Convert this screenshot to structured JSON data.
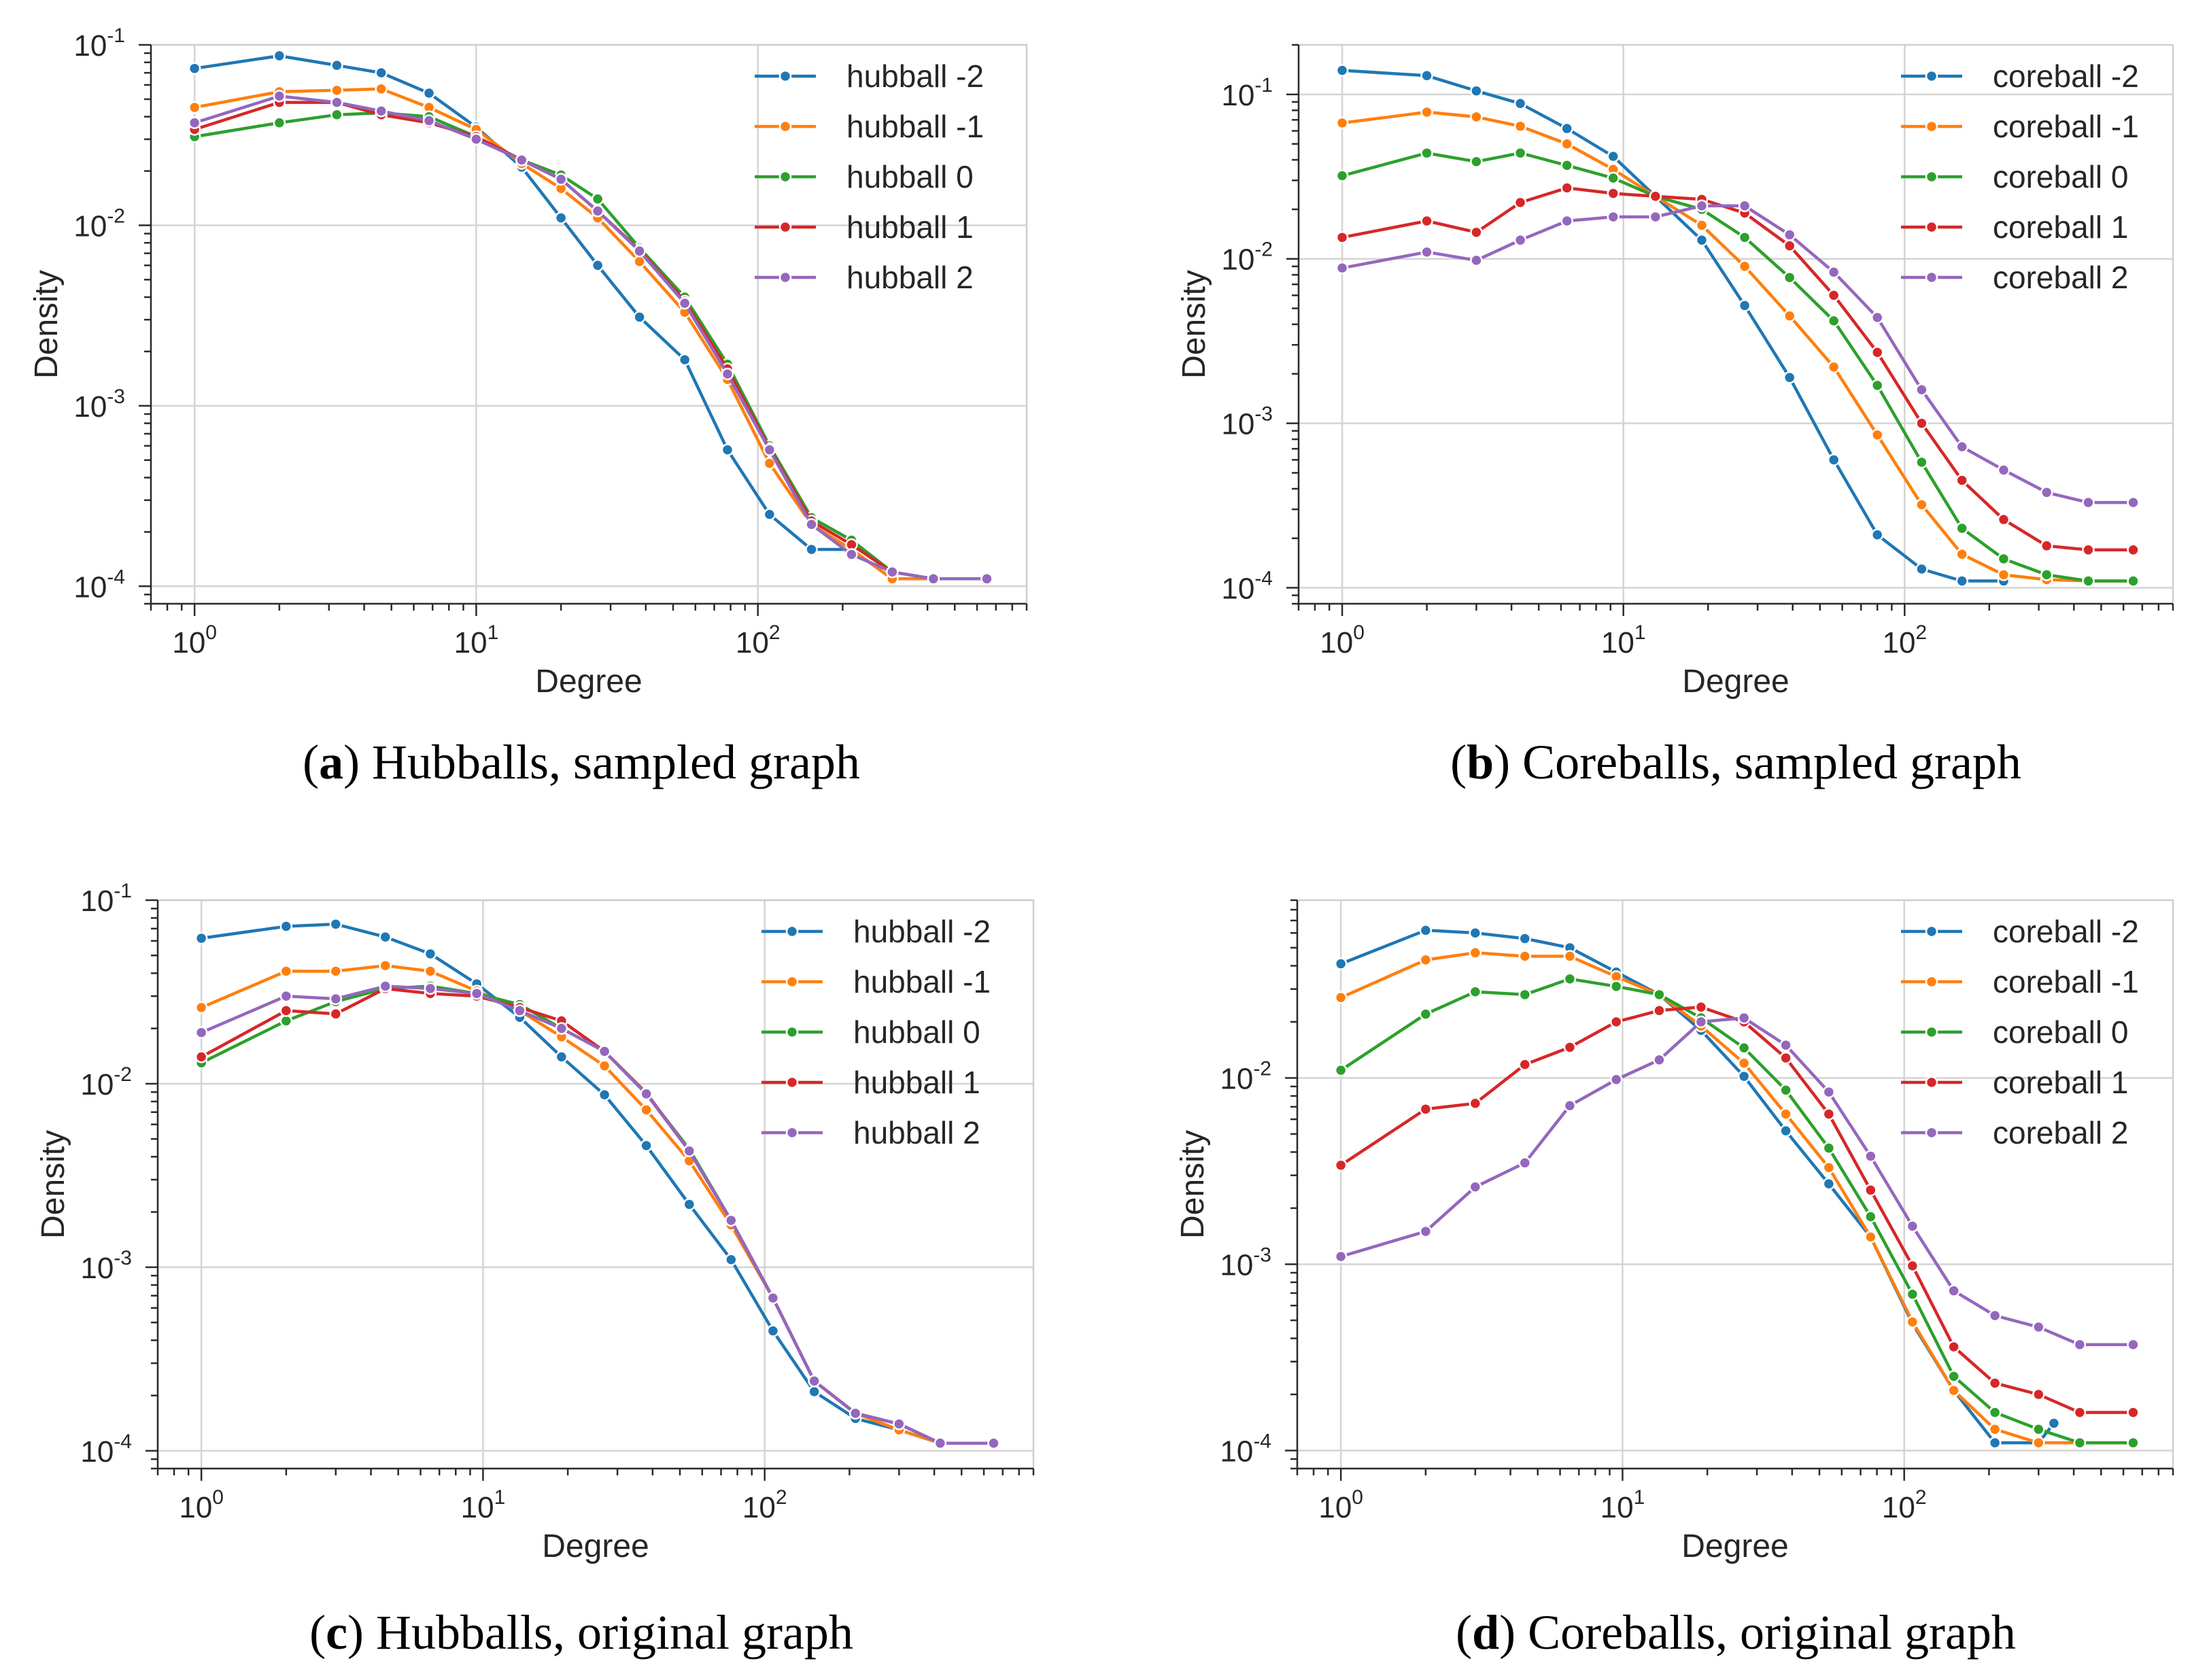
{
  "colors": {
    "series": [
      "#1f77b4",
      "#ff7f0e",
      "#2ca02c",
      "#d62728",
      "#9467bd"
    ],
    "grid": "#d4d4d4",
    "axis": "#2b2b2b"
  },
  "chart_data": [
    {
      "type": "line",
      "panel_letter": "a",
      "caption": "Hubballs, sampled graph",
      "xlabel": "Degree",
      "ylabel": "Density",
      "xscale": "log",
      "yscale": "log",
      "xlim": [
        0.7,
        900
      ],
      "ylim": [
        8e-05,
        0.1
      ],
      "xticks": [
        {
          "base": "10",
          "exp": "0",
          "value": 1
        },
        {
          "base": "10",
          "exp": "1",
          "value": 10
        },
        {
          "base": "10",
          "exp": "2",
          "value": 100
        }
      ],
      "yticks": [
        {
          "base": "10",
          "exp": "-4",
          "value": 0.0001
        },
        {
          "base": "10",
          "exp": "-3",
          "value": 0.001
        },
        {
          "base": "10",
          "exp": "-2",
          "value": 0.01
        },
        {
          "base": "10",
          "exp": "-1",
          "value": 0.1
        }
      ],
      "legend_position": "top-right",
      "grid": true,
      "series": [
        {
          "name": "hubball -2",
          "x": [
            1,
            2,
            3.2,
            4.6,
            6.8,
            10,
            14.5,
            20,
            27,
            38,
            55,
            78,
            110,
            155,
            215,
            300,
            420,
            650
          ],
          "values": [
            0.074,
            0.087,
            0.077,
            0.07,
            0.054,
            0.035,
            0.021,
            0.011,
            0.006,
            0.0031,
            0.0018,
            0.00057,
            0.00025,
            0.00016,
            0.00016,
            0.00011,
            0.00011,
            0.00011
          ]
        },
        {
          "name": "hubball -1",
          "x": [
            1,
            2,
            3.2,
            4.6,
            6.8,
            10,
            14.5,
            20,
            27,
            38,
            55,
            78,
            110,
            155,
            215,
            300,
            420,
            650
          ],
          "values": [
            0.045,
            0.055,
            0.056,
            0.057,
            0.045,
            0.034,
            0.022,
            0.016,
            0.011,
            0.0063,
            0.0033,
            0.0014,
            0.00048,
            0.00022,
            0.00016,
            0.00011,
            0.00011,
            0.00011
          ]
        },
        {
          "name": "hubball 0",
          "x": [
            1,
            2,
            3.2,
            4.6,
            6.8,
            10,
            14.5,
            20,
            27,
            38,
            55,
            78,
            110,
            155,
            215,
            300,
            420,
            650
          ],
          "values": [
            0.031,
            0.037,
            0.041,
            0.042,
            0.04,
            0.031,
            0.023,
            0.019,
            0.014,
            0.0075,
            0.004,
            0.0017,
            0.0006,
            0.00024,
            0.00018,
            0.00012,
            0.00011,
            0.00011
          ]
        },
        {
          "name": "hubball 1",
          "x": [
            1,
            2,
            3.2,
            4.6,
            6.8,
            10,
            14.5,
            20,
            27,
            38,
            55,
            78,
            110,
            155,
            215,
            300,
            420,
            650
          ],
          "values": [
            0.034,
            0.048,
            0.048,
            0.041,
            0.037,
            0.031,
            0.023,
            0.018,
            0.012,
            0.0073,
            0.0038,
            0.0016,
            0.00058,
            0.00023,
            0.00017,
            0.00012,
            0.00011,
            0.00011
          ]
        },
        {
          "name": "hubball 2",
          "x": [
            1,
            2,
            3.2,
            4.6,
            6.8,
            10,
            14.5,
            20,
            27,
            38,
            55,
            78,
            110,
            155,
            215,
            300,
            420,
            650
          ],
          "values": [
            0.037,
            0.052,
            0.048,
            0.043,
            0.038,
            0.03,
            0.023,
            0.018,
            0.012,
            0.0072,
            0.0037,
            0.0015,
            0.00057,
            0.00022,
            0.00015,
            0.00012,
            0.00011,
            0.00011
          ]
        }
      ]
    },
    {
      "type": "line",
      "panel_letter": "b",
      "caption": "Coreballs, sampled graph",
      "xlabel": "Degree",
      "ylabel": "Density",
      "xscale": "log",
      "yscale": "log",
      "xlim": [
        0.7,
        900
      ],
      "ylim": [
        8e-05,
        0.2
      ],
      "xticks": [
        {
          "base": "10",
          "exp": "0",
          "value": 1
        },
        {
          "base": "10",
          "exp": "1",
          "value": 10
        },
        {
          "base": "10",
          "exp": "2",
          "value": 100
        }
      ],
      "yticks": [
        {
          "base": "10",
          "exp": "-4",
          "value": 0.0001
        },
        {
          "base": "10",
          "exp": "-3",
          "value": 0.001
        },
        {
          "base": "10",
          "exp": "-2",
          "value": 0.01
        },
        {
          "base": "10",
          "exp": "-1",
          "value": 0.1
        }
      ],
      "legend_position": "top-right",
      "grid": true,
      "series": [
        {
          "name": "coreball -2",
          "x": [
            1,
            2,
            3,
            4.3,
            6.3,
            9.2,
            13,
            19,
            27,
            39,
            56,
            80,
            115,
            160,
            225
          ],
          "values": [
            0.14,
            0.13,
            0.105,
            0.088,
            0.062,
            0.042,
            0.024,
            0.013,
            0.0052,
            0.0019,
            0.0006,
            0.00021,
            0.00013,
            0.00011,
            0.00011
          ]
        },
        {
          "name": "coreball -1",
          "x": [
            1,
            2,
            3,
            4.3,
            6.3,
            9.2,
            13,
            19,
            27,
            39,
            56,
            80,
            115,
            160,
            225,
            320,
            450,
            650
          ],
          "values": [
            0.067,
            0.078,
            0.073,
            0.064,
            0.05,
            0.035,
            0.024,
            0.016,
            0.009,
            0.0045,
            0.0022,
            0.00085,
            0.00032,
            0.00016,
            0.00012,
            0.000112,
            0.00011,
            0.00011
          ]
        },
        {
          "name": "coreball 0",
          "x": [
            1,
            2,
            3,
            4.3,
            6.3,
            9.2,
            13,
            19,
            27,
            39,
            56,
            80,
            115,
            160,
            225,
            320,
            450,
            650
          ],
          "values": [
            0.032,
            0.044,
            0.039,
            0.044,
            0.037,
            0.031,
            0.024,
            0.02,
            0.0135,
            0.0077,
            0.0042,
            0.0017,
            0.00058,
            0.00023,
            0.00015,
            0.00012,
            0.00011,
            0.00011
          ]
        },
        {
          "name": "coreball 1",
          "x": [
            1,
            2,
            3,
            4.3,
            6.3,
            9.2,
            13,
            19,
            27,
            39,
            56,
            80,
            115,
            160,
            225,
            320,
            450,
            650
          ],
          "values": [
            0.0135,
            0.017,
            0.0145,
            0.022,
            0.027,
            0.025,
            0.024,
            0.023,
            0.019,
            0.012,
            0.006,
            0.0027,
            0.001,
            0.00045,
            0.00026,
            0.00018,
            0.00017,
            0.00017
          ]
        },
        {
          "name": "coreball 2",
          "x": [
            1,
            2,
            3,
            4.3,
            6.3,
            9.2,
            13,
            19,
            27,
            39,
            56,
            80,
            115,
            160,
            225,
            320,
            450,
            650
          ],
          "values": [
            0.0088,
            0.011,
            0.0098,
            0.013,
            0.017,
            0.018,
            0.018,
            0.021,
            0.021,
            0.014,
            0.0083,
            0.0044,
            0.0016,
            0.00072,
            0.00052,
            0.00038,
            0.00033,
            0.00033
          ]
        }
      ]
    },
    {
      "type": "line",
      "panel_letter": "c",
      "caption": "Hubballs, original graph",
      "xlabel": "Degree",
      "ylabel": "Density",
      "xscale": "log",
      "yscale": "log",
      "xlim": [
        0.7,
        900
      ],
      "ylim": [
        8e-05,
        0.1
      ],
      "xticks": [
        {
          "base": "10",
          "exp": "0",
          "value": 1
        },
        {
          "base": "10",
          "exp": "1",
          "value": 10
        },
        {
          "base": "10",
          "exp": "2",
          "value": 100
        }
      ],
      "yticks": [
        {
          "base": "10",
          "exp": "-4",
          "value": 0.0001
        },
        {
          "base": "10",
          "exp": "-3",
          "value": 0.001
        },
        {
          "base": "10",
          "exp": "-2",
          "value": 0.01
        },
        {
          "base": "10",
          "exp": "-1",
          "value": 0.1
        }
      ],
      "legend_position": "top-right",
      "grid": true,
      "series": [
        {
          "name": "hubball -2",
          "x": [
            1,
            2,
            3,
            4.5,
            6.5,
            9.5,
            13.5,
            19,
            27,
            38,
            54,
            76,
            107,
            150,
            210,
            300,
            420,
            650
          ],
          "values": [
            0.062,
            0.072,
            0.074,
            0.063,
            0.051,
            0.035,
            0.023,
            0.014,
            0.0087,
            0.0046,
            0.0022,
            0.0011,
            0.00045,
            0.00021,
            0.00015,
            0.00013,
            0.00011,
            0.00011
          ]
        },
        {
          "name": "hubball -1",
          "x": [
            1,
            2,
            3,
            4.5,
            6.5,
            9.5,
            13.5,
            19,
            27,
            38,
            54,
            76,
            107,
            150,
            210,
            300,
            420,
            650
          ],
          "values": [
            0.026,
            0.041,
            0.041,
            0.044,
            0.041,
            0.032,
            0.025,
            0.018,
            0.0125,
            0.0072,
            0.0038,
            0.0017,
            0.00068,
            0.00024,
            0.00016,
            0.00013,
            0.00011,
            0.00011
          ]
        },
        {
          "name": "hubball 0",
          "x": [
            1,
            2,
            3,
            4.5,
            6.5,
            9.5,
            13.5,
            19,
            27,
            38,
            54,
            76,
            107,
            150,
            210,
            300,
            420,
            650
          ],
          "values": [
            0.013,
            0.022,
            0.028,
            0.033,
            0.034,
            0.031,
            0.027,
            0.02,
            0.015,
            0.0088,
            0.0044,
            0.0018,
            0.00068,
            0.00024,
            0.00016,
            0.00014,
            0.00011,
            0.00011
          ]
        },
        {
          "name": "hubball 1",
          "x": [
            1,
            2,
            3,
            4.5,
            6.5,
            9.5,
            13.5,
            19,
            27,
            38,
            54,
            76,
            107,
            150,
            210,
            300,
            420,
            650
          ],
          "values": [
            0.014,
            0.025,
            0.024,
            0.033,
            0.031,
            0.03,
            0.026,
            0.022,
            0.015,
            0.0089,
            0.0043,
            0.0018,
            0.00068,
            0.00024,
            0.00016,
            0.00014,
            0.00011,
            0.00011
          ]
        },
        {
          "name": "hubball 2",
          "x": [
            1,
            2,
            3,
            4.5,
            6.5,
            9.5,
            13.5,
            19,
            27,
            38,
            54,
            76,
            107,
            150,
            210,
            300,
            420,
            650
          ],
          "values": [
            0.019,
            0.03,
            0.029,
            0.034,
            0.033,
            0.031,
            0.025,
            0.02,
            0.015,
            0.0088,
            0.0043,
            0.0018,
            0.00068,
            0.00024,
            0.00016,
            0.00014,
            0.00011,
            0.00011
          ]
        }
      ]
    },
    {
      "type": "line",
      "panel_letter": "d",
      "caption": "Coreballs, original graph",
      "xlabel": "Degree",
      "ylabel": "Density",
      "xscale": "log",
      "yscale": "log",
      "xlim": [
        0.7,
        900
      ],
      "ylim": [
        8e-05,
        0.09
      ],
      "xticks": [
        {
          "base": "10",
          "exp": "0",
          "value": 1
        },
        {
          "base": "10",
          "exp": "1",
          "value": 10
        },
        {
          "base": "10",
          "exp": "2",
          "value": 100
        }
      ],
      "yticks": [
        {
          "base": "10",
          "exp": "-4",
          "value": 0.0001
        },
        {
          "base": "10",
          "exp": "-3",
          "value": 0.001
        },
        {
          "base": "10",
          "exp": "-2",
          "value": 0.01
        }
      ],
      "legend_position": "top-right",
      "grid": true,
      "series": [
        {
          "name": "coreball -2",
          "x": [
            1,
            2,
            3,
            4.5,
            6.5,
            9.5,
            13.5,
            19,
            27,
            38,
            54,
            76,
            107,
            150,
            210,
            300,
            340
          ],
          "values": [
            0.041,
            0.062,
            0.06,
            0.056,
            0.05,
            0.037,
            0.028,
            0.018,
            0.0102,
            0.0052,
            0.0027,
            0.0014,
            0.00048,
            0.00021,
            0.00011,
            0.00011,
            0.00014
          ]
        },
        {
          "name": "coreball -1",
          "x": [
            1,
            2,
            3,
            4.5,
            6.5,
            9.5,
            13.5,
            19,
            27,
            38,
            54,
            76,
            107,
            150,
            210,
            300,
            420,
            650
          ],
          "values": [
            0.027,
            0.043,
            0.047,
            0.045,
            0.045,
            0.035,
            0.028,
            0.019,
            0.012,
            0.0064,
            0.0033,
            0.0014,
            0.00049,
            0.00021,
            0.00013,
            0.00011,
            0.00011,
            0.00011
          ]
        },
        {
          "name": "coreball 0",
          "x": [
            1,
            2,
            3,
            4.5,
            6.5,
            9.5,
            13.5,
            19,
            27,
            38,
            54,
            76,
            107,
            150,
            210,
            300,
            420,
            650
          ],
          "values": [
            0.011,
            0.022,
            0.029,
            0.028,
            0.034,
            0.031,
            0.028,
            0.021,
            0.0145,
            0.0086,
            0.0042,
            0.0018,
            0.00069,
            0.00025,
            0.00016,
            0.00013,
            0.00011,
            0.00011
          ]
        },
        {
          "name": "coreball 1",
          "x": [
            1,
            2,
            3,
            4.5,
            6.5,
            9.5,
            13.5,
            19,
            27,
            38,
            54,
            76,
            107,
            150,
            210,
            300,
            420,
            650
          ],
          "values": [
            0.0034,
            0.0068,
            0.0073,
            0.0118,
            0.0146,
            0.02,
            0.023,
            0.024,
            0.02,
            0.0128,
            0.0064,
            0.0025,
            0.00098,
            0.00036,
            0.00023,
            0.0002,
            0.00016,
            0.00016
          ]
        },
        {
          "name": "coreball 2",
          "x": [
            1,
            2,
            3,
            4.5,
            6.5,
            9.5,
            13.5,
            19,
            27,
            38,
            54,
            76,
            107,
            150,
            210,
            300,
            420,
            650
          ],
          "values": [
            0.0011,
            0.0015,
            0.0026,
            0.0035,
            0.0071,
            0.0098,
            0.0125,
            0.02,
            0.021,
            0.015,
            0.0084,
            0.0038,
            0.0016,
            0.00072,
            0.00053,
            0.00046,
            0.00037,
            0.00037
          ]
        }
      ]
    }
  ]
}
